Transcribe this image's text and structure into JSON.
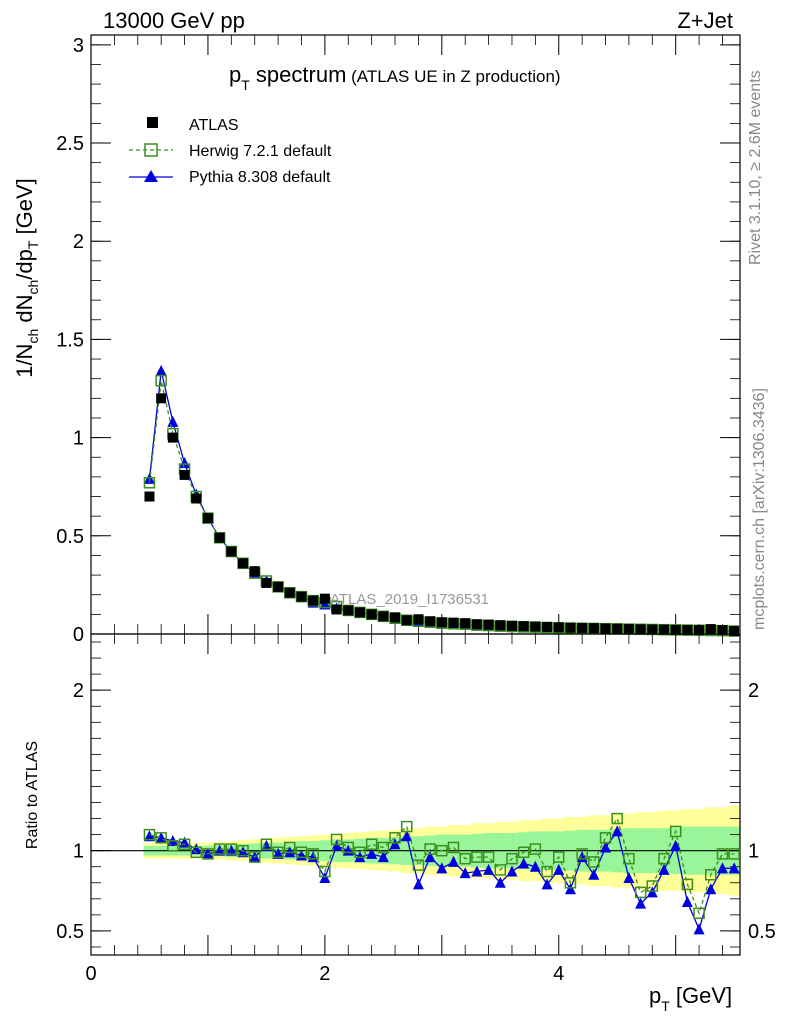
{
  "header": {
    "left": "13000 GeV pp",
    "right": "Z+Jet"
  },
  "side_labels": {
    "rivet": "Rivet 3.1.10, ≥ 2.6M events",
    "mcplots": "mcplots.cern.ch [arXiv:1306.3436]"
  },
  "main_title": {
    "part1": "p",
    "part1_sub": "T",
    "part2": " spectrum",
    "part3": " (ATLAS UE in Z production)"
  },
  "watermark": "ATLAS_2019_I1736531",
  "chart_data": [
    {
      "type": "scatter",
      "panel": "main",
      "ylabel": "1/N_ch dN_ch/dp_T [GeV]",
      "ylim": [
        0,
        3.05
      ],
      "xlim": [
        0,
        5.55
      ],
      "y_ticks": [
        "0",
        "0.5",
        "1",
        "1.5",
        "2",
        "2.5",
        "3"
      ],
      "x": [
        0.5,
        0.6,
        0.7,
        0.8,
        0.9,
        1.0,
        1.1,
        1.2,
        1.3,
        1.4,
        1.5,
        1.6,
        1.7,
        1.8,
        1.9,
        2.0,
        2.1,
        2.2,
        2.3,
        2.4,
        2.5,
        2.6,
        2.7,
        2.8,
        2.9,
        3.0,
        3.1,
        3.2,
        3.3,
        3.4,
        3.5,
        3.6,
        3.7,
        3.8,
        3.9,
        4.0,
        4.1,
        4.2,
        4.3,
        4.4,
        4.5,
        4.6,
        4.7,
        4.8,
        4.9,
        5.0,
        5.1,
        5.2,
        5.3,
        5.4,
        5.5
      ],
      "series": [
        {
          "name": "ATLAS",
          "color": "#000000",
          "marker": "square",
          "values": [
            0.7,
            1.2,
            1.0,
            0.81,
            0.69,
            0.59,
            0.49,
            0.42,
            0.36,
            0.32,
            0.26,
            0.24,
            0.21,
            0.19,
            0.17,
            0.18,
            0.125,
            0.12,
            0.11,
            0.1,
            0.09,
            0.085,
            0.07,
            0.075,
            0.065,
            0.06,
            0.058,
            0.055,
            0.05,
            0.048,
            0.045,
            0.042,
            0.04,
            0.038,
            0.036,
            0.034,
            0.032,
            0.031,
            0.03,
            0.028,
            0.027,
            0.025,
            0.024,
            0.023,
            0.022,
            0.021,
            0.02,
            0.02,
            0.025,
            0.02,
            0.015
          ]
        },
        {
          "name": "Herwig 7.2.1 default",
          "color": "#3a8f1e",
          "marker": "open-square",
          "values": [
            0.77,
            1.29,
            1.02,
            0.84,
            0.7,
            0.59,
            0.49,
            0.42,
            0.36,
            0.31,
            0.27,
            0.24,
            0.21,
            0.19,
            0.17,
            0.16,
            0.14,
            0.12,
            0.11,
            0.1,
            0.09,
            0.08,
            0.07,
            0.065,
            0.06,
            0.055,
            0.052,
            0.05,
            0.045,
            0.043,
            0.04,
            0.038,
            0.036,
            0.035,
            0.033,
            0.031,
            0.03,
            0.029,
            0.028,
            0.027,
            0.026,
            0.025,
            0.024,
            0.023,
            0.022,
            0.021,
            0.02,
            0.019,
            0.018,
            0.017,
            0.015
          ]
        },
        {
          "name": "Pythia 8.308 default",
          "color": "#0000e0",
          "marker": "triangle",
          "values": [
            0.79,
            1.34,
            1.08,
            0.87,
            0.71,
            0.59,
            0.49,
            0.42,
            0.36,
            0.31,
            0.27,
            0.24,
            0.21,
            0.19,
            0.16,
            0.15,
            0.13,
            0.12,
            0.11,
            0.1,
            0.09,
            0.08,
            0.07,
            0.063,
            0.058,
            0.054,
            0.05,
            0.047,
            0.044,
            0.041,
            0.039,
            0.037,
            0.035,
            0.033,
            0.031,
            0.03,
            0.029,
            0.028,
            0.027,
            0.026,
            0.025,
            0.024,
            0.023,
            0.022,
            0.021,
            0.02,
            0.019,
            0.018,
            0.017,
            0.016,
            0.015
          ]
        }
      ]
    },
    {
      "type": "line",
      "panel": "ratio",
      "ylabel": "Ratio to ATLAS",
      "xlabel": "p_T [GeV]",
      "ylim": [
        0.35,
        2.35
      ],
      "xlim": [
        0,
        5.55
      ],
      "x_ticks": [
        "0",
        "2",
        "4"
      ],
      "y_ticks": [
        "0.5",
        "1",
        "2"
      ],
      "x": [
        0.5,
        0.6,
        0.7,
        0.8,
        0.9,
        1.0,
        1.1,
        1.2,
        1.3,
        1.4,
        1.5,
        1.6,
        1.7,
        1.8,
        1.9,
        2.0,
        2.1,
        2.2,
        2.3,
        2.4,
        2.5,
        2.6,
        2.7,
        2.8,
        2.9,
        3.0,
        3.1,
        3.2,
        3.3,
        3.4,
        3.5,
        3.6,
        3.7,
        3.8,
        3.9,
        4.0,
        4.1,
        4.2,
        4.3,
        4.4,
        4.5,
        4.6,
        4.7,
        4.8,
        4.9,
        5.0,
        5.1,
        5.2,
        5.3,
        5.4,
        5.5
      ],
      "band_inner": [
        0.03,
        0.03,
        0.03,
        0.03,
        0.03,
        0.03,
        0.035,
        0.04,
        0.04,
        0.045,
        0.05,
        0.05,
        0.055,
        0.06,
        0.06,
        0.065,
        0.07,
        0.07,
        0.075,
        0.08,
        0.08,
        0.085,
        0.09,
        0.09,
        0.095,
        0.1,
        0.1,
        0.1,
        0.105,
        0.11,
        0.11,
        0.11,
        0.115,
        0.12,
        0.12,
        0.12,
        0.125,
        0.13,
        0.13,
        0.13,
        0.135,
        0.14,
        0.14,
        0.14,
        0.14,
        0.145,
        0.15,
        0.15,
        0.15,
        0.15,
        0.15
      ],
      "band_outer": [
        0.05,
        0.05,
        0.05,
        0.05,
        0.05,
        0.05,
        0.055,
        0.06,
        0.065,
        0.07,
        0.075,
        0.08,
        0.085,
        0.09,
        0.095,
        0.1,
        0.105,
        0.11,
        0.115,
        0.12,
        0.125,
        0.13,
        0.14,
        0.14,
        0.15,
        0.15,
        0.16,
        0.16,
        0.17,
        0.17,
        0.18,
        0.18,
        0.19,
        0.19,
        0.2,
        0.2,
        0.21,
        0.21,
        0.22,
        0.22,
        0.23,
        0.23,
        0.24,
        0.24,
        0.25,
        0.25,
        0.26,
        0.26,
        0.27,
        0.27,
        0.28
      ],
      "series": [
        {
          "name": "Herwig 7.2.1 default",
          "color": "#3a8f1e",
          "marker": "open-square",
          "values": [
            1.1,
            1.08,
            1.03,
            1.04,
            0.99,
            0.98,
            1.01,
            1.01,
            1.0,
            0.96,
            1.04,
            0.99,
            1.02,
            0.99,
            0.98,
            0.87,
            1.07,
            1.02,
            0.99,
            1.04,
            1.02,
            1.08,
            1.15,
            0.91,
            1.01,
            1.0,
            1.02,
            0.95,
            0.96,
            0.96,
            0.88,
            0.95,
            0.99,
            1.01,
            0.87,
            0.96,
            0.8,
            0.98,
            0.93,
            1.08,
            1.2,
            0.95,
            0.74,
            0.78,
            0.95,
            1.12,
            0.79,
            0.61,
            0.85,
            0.98,
            0.98
          ]
        },
        {
          "name": "Pythia 8.308 default",
          "color": "#0000e0",
          "marker": "triangle",
          "values": [
            1.09,
            1.08,
            1.06,
            1.05,
            1.01,
            0.98,
            1.0,
            1.0,
            0.99,
            0.96,
            1.03,
            0.98,
            0.99,
            0.97,
            0.96,
            0.83,
            1.03,
            1.0,
            0.96,
            0.98,
            0.96,
            1.04,
            1.09,
            0.79,
            0.96,
            0.89,
            0.93,
            0.86,
            0.87,
            0.88,
            0.8,
            0.87,
            0.92,
            0.9,
            0.79,
            0.88,
            0.76,
            0.96,
            0.85,
            1.02,
            1.12,
            0.83,
            0.67,
            0.74,
            0.88,
            1.03,
            0.68,
            0.51,
            0.76,
            0.89,
            0.89
          ]
        }
      ]
    }
  ]
}
